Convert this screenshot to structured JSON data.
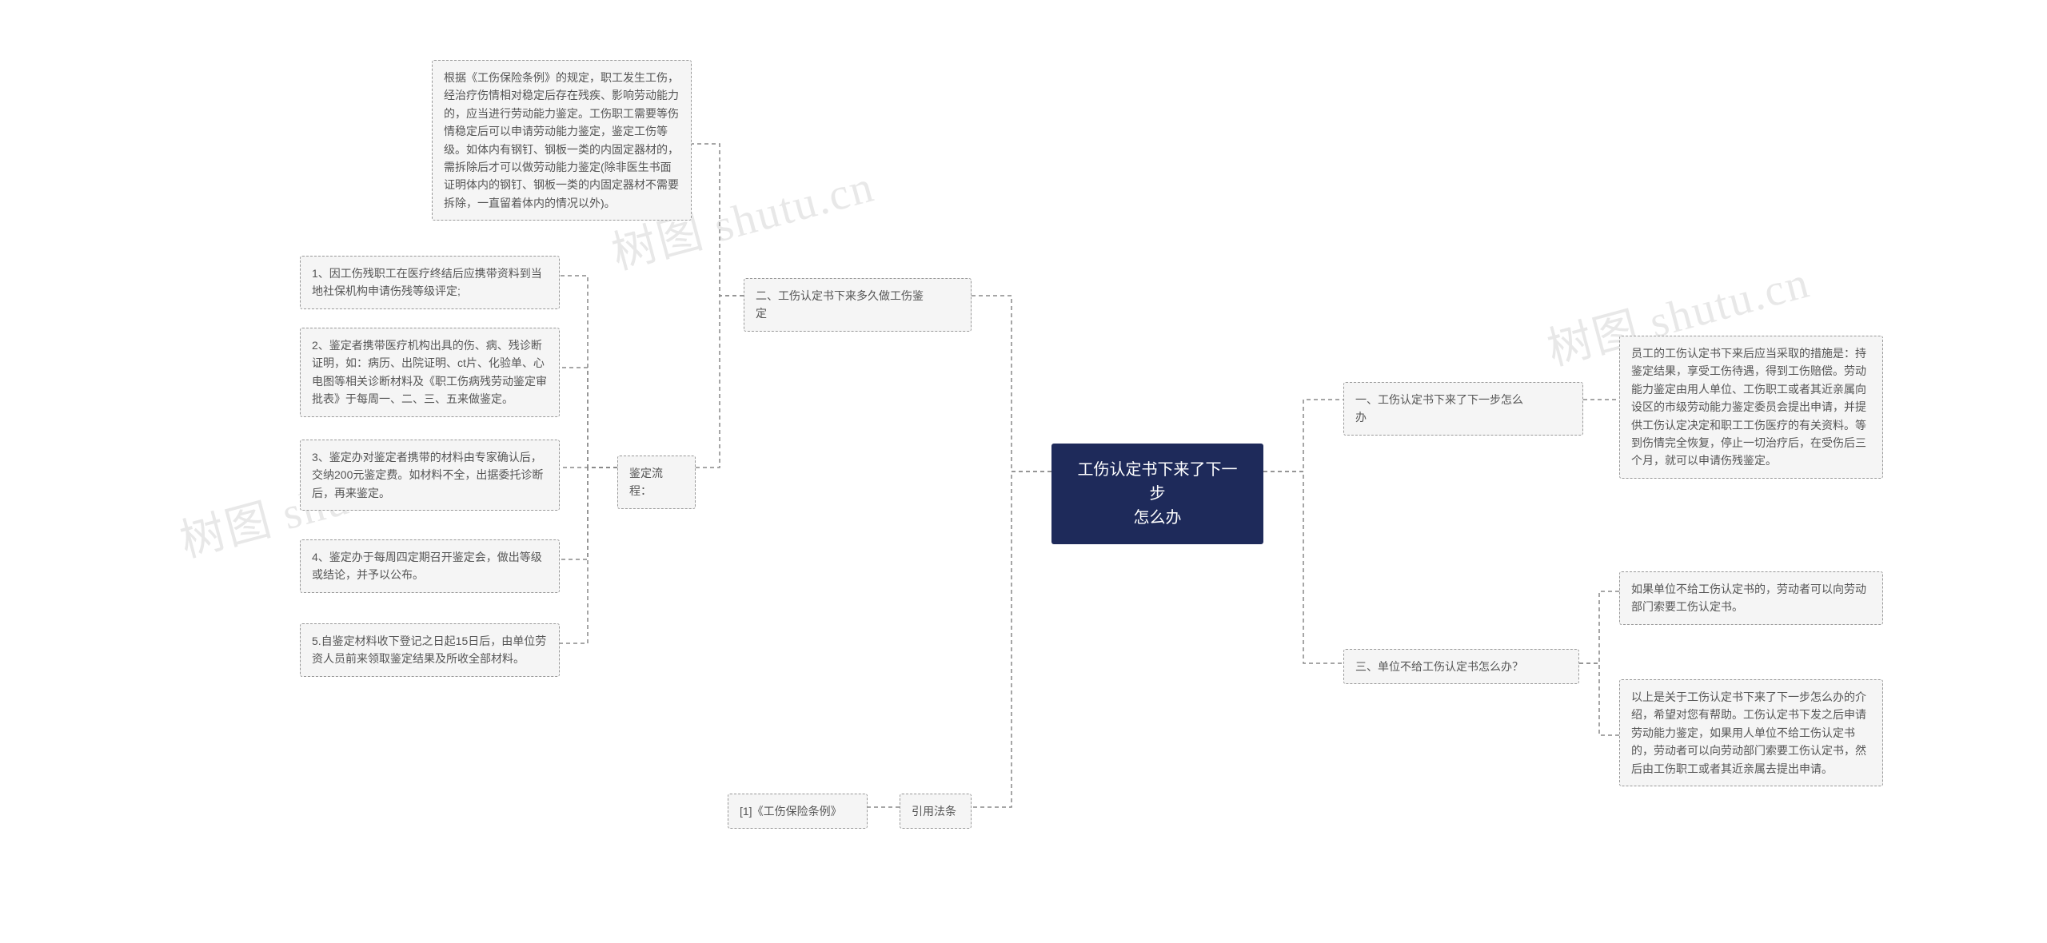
{
  "root": {
    "text": "工伤认定书下来了下一步\n怎么办",
    "bg": "#1e2a5a",
    "color": "#ffffff"
  },
  "right": {
    "branch1": {
      "title": "一、工伤认定书下来了下一步怎么\n办",
      "content": "员工的工伤认定书下来后应当采取的措施是：持鉴定结果，享受工伤待遇，得到工伤赔偿。劳动能力鉴定由用人单位、工伤职工或者其近亲属向设区的市级劳动能力鉴定委员会提出申请，并提供工伤认定决定和职工工伤医疗的有关资料。等到伤情完全恢复，停止一切治疗后，在受伤后三个月，就可以申请伤残鉴定。"
    },
    "branch3": {
      "title": "三、单位不给工伤认定书怎么办？",
      "content1": "如果单位不给工伤认定书的，劳动者可以向劳动部门索要工伤认定书。",
      "content2": "以上是关于工伤认定书下来了下一步怎么办的介绍，希望对您有帮助。工伤认定书下发之后申请劳动能力鉴定，如果用人单位不给工伤认定书的，劳动者可以向劳动部门索要工伤认定书，然后由工伤职工或者其近亲属去提出申请。"
    }
  },
  "left": {
    "branch2": {
      "title": "二、工伤认定书下来多久做工伤鉴\n定",
      "content_top": "根据《工伤保险条例》的规定，职工发生工伤，经治疗伤情相对稳定后存在残疾、影响劳动能力的，应当进行劳动能力鉴定。工伤职工需要等伤情稳定后可以申请劳动能力鉴定，鉴定工伤等级。如体内有钢钉、钢板一类的内固定器材的，需拆除后才可以做劳动能力鉴定(除非医生书面证明体内的钢钉、钢板一类的内固定器材不需要拆除，一直留着体内的情况以外)。",
      "process_label": "鉴定流程：",
      "process": {
        "step1": "1、因工伤残职工在医疗终结后应携带资料到当地社保机构申请伤残等级评定;",
        "step2": "2、鉴定者携带医疗机构出具的伤、病、残诊断证明，如：病历、出院证明、ct片、化验单、心电图等相关诊断材料及《职工伤病残劳动鉴定审批表》于每周一、二、三、五来做鉴定。",
        "step3": "3、鉴定办对鉴定者携带的材料由专家确认后，交纳200元鉴定费。如材料不全，出据委托诊断后，再来鉴定。",
        "step4": "4、鉴定办于每周四定期召开鉴定会，做出等级或结论，并予以公布。",
        "step5": "5.自鉴定材料收下登记之日起15日后，由单位劳资人员前来领取鉴定结果及所收全部材料。"
      }
    },
    "branch4": {
      "title": "引用法条",
      "content": "[1]《工伤保险条例》"
    }
  },
  "watermark": "树图 shutu.cn",
  "style": {
    "node_bg": "#f5f5f5",
    "node_border": "#999999",
    "connector_color": "#888888",
    "watermark_color": "#e8e8e8"
  }
}
